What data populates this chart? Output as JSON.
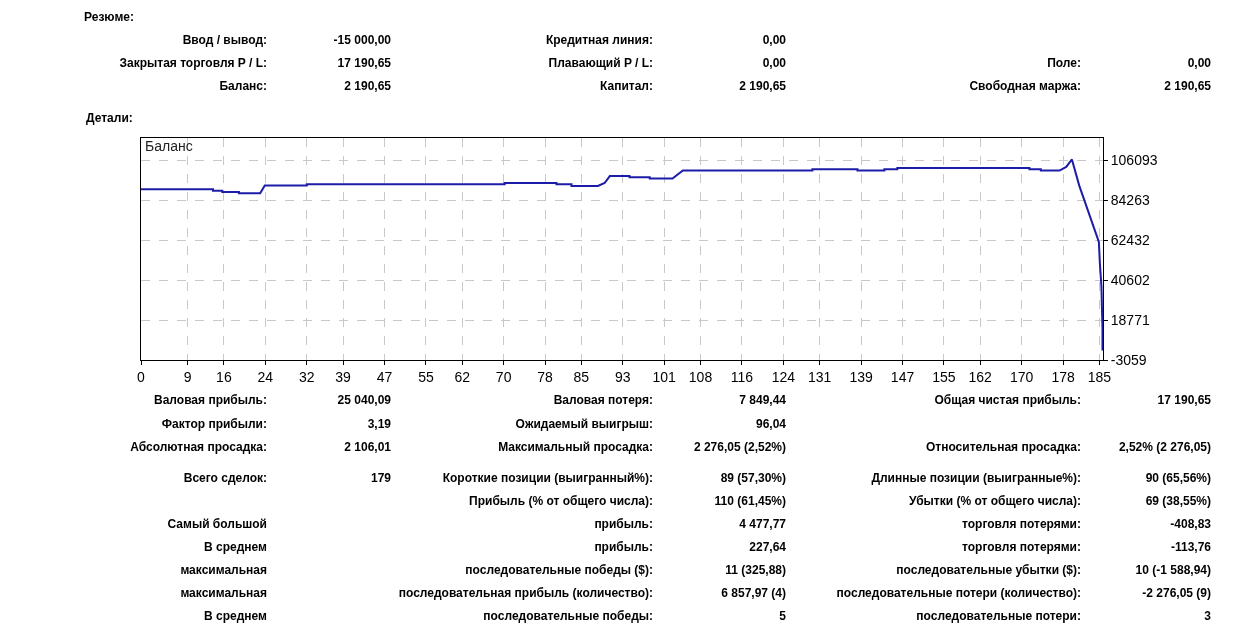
{
  "chart_data": [
    {
      "type": "other",
      "title": "Резюме:",
      "annotations": [
        "Ввод / вывод:",
        "-15 000,00",
        "Кредитная линия:",
        "0,00",
        "Закрытая торговля P / L:",
        "17 190,65",
        "Плавающий P / L:",
        "0,00",
        "Поле:",
        "0,00",
        "Баланс:",
        "2 190,65",
        "Капитал:",
        "2 190,65",
        "Свободная маржа:",
        "2 190,65"
      ]
    },
    {
      "type": "line",
      "title": "Баланс",
      "subtitle": "Детали:",
      "color": "#1c1ca8",
      "marker": "none",
      "line_style": "solid",
      "grid": true,
      "legend": false,
      "x": [
        0,
        13.9,
        13.9,
        15.7,
        15.7,
        18.9,
        18.9,
        23,
        23.9,
        32,
        32,
        70.2,
        70.2,
        80.2,
        80.2,
        83.1,
        83.1,
        88.2,
        89.5,
        90.5,
        94.3,
        94.3,
        98.2,
        98.2,
        102.6,
        104.6,
        129.6,
        129.6,
        138.3,
        138.3,
        143.5,
        143.5,
        146,
        146,
        171.5,
        171.5,
        173.7,
        173.7,
        177.3,
        178.6,
        179.7,
        181.1,
        184.9,
        185.1,
        185.4,
        185.5,
        185.6,
        185.6
      ],
      "values": [
        90300,
        90300,
        89500,
        89500,
        88800,
        88800,
        88100,
        88100,
        92400,
        92400,
        93000,
        93000,
        93700,
        93700,
        93000,
        93000,
        92100,
        92100,
        93700,
        97500,
        97500,
        96800,
        96800,
        96100,
        96100,
        100600,
        100600,
        101200,
        101200,
        100500,
        100500,
        101200,
        101200,
        101900,
        101900,
        101200,
        101200,
        100500,
        100500,
        102500,
        106600,
        92400,
        61500,
        49700,
        37000,
        25300,
        14400,
        2200
      ],
      "xlim": [
        0,
        185.7
      ],
      "ylim": [
        -3059,
        118300
      ],
      "xticks": [
        0,
        9,
        16,
        24,
        32,
        39,
        47,
        55,
        62,
        70,
        78,
        85,
        93,
        101,
        108,
        116,
        124,
        131,
        139,
        147,
        155,
        162,
        170,
        178,
        185
      ],
      "yticks": [
        -3059,
        18771,
        40602,
        62432,
        84263,
        106093
      ]
    },
    {
      "type": "other",
      "annotations": [
        "Валовая прибыль:",
        "25 040,09",
        "Валовая потеря:",
        "7 849,44",
        "Общая чистая прибыль:",
        "17 190,65",
        "Фактор прибыли:",
        "3,19",
        "Ожидаемый выигрыш:",
        "96,04",
        "Абсолютная просадка:",
        "2 106,01",
        "Максимальный просадка:",
        "2 276,05 (2,52%)",
        "Относительная просадка:",
        "2,52% (2 276,05)",
        "Всего сделок:",
        "179",
        "Короткие позиции (выигранный%):",
        "89 (57,30%)",
        "Длинные позиции (выигранные%):",
        "90 (65,56%)",
        "Прибыль (% от общего числа):",
        "110 (61,45%)",
        "Убытки (% от общего числа):",
        "69 (38,55%)",
        "Самый большой",
        "прибыль:",
        "4 477,77",
        "торговля потерями:",
        "-408,83",
        "В среднем",
        "прибыль:",
        "227,64",
        "торговля потерями:",
        "-113,76",
        "максимальная",
        "последовательные победы ($):",
        "11 (325,88)",
        "последовательные убытки ($):",
        "10 (-1 588,94)",
        "максимальная",
        "последовательная прибыль (количество):",
        "6 857,97 (4)",
        "последовательные потери (количество):",
        "-2 276,05 (9)",
        "В среднем",
        "последовательные победы:",
        "5",
        "последовательные потери:",
        "3"
      ]
    }
  ]
}
